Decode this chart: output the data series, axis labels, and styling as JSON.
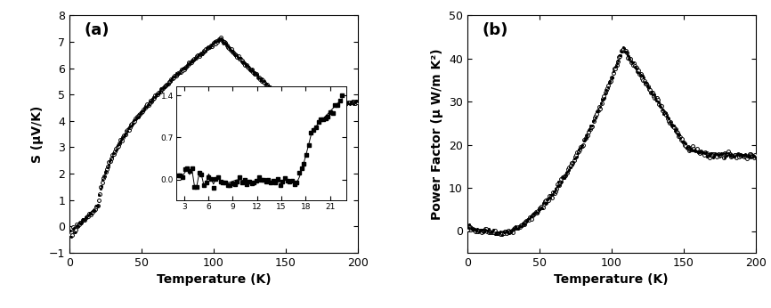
{
  "panel_a": {
    "label": "(a)",
    "xlabel": "Temperature (K)",
    "ylabel": "S (μV/K)",
    "xlim": [
      0,
      200
    ],
    "ylim": [
      -1,
      8
    ],
    "yticks": [
      -1,
      0,
      1,
      2,
      3,
      4,
      5,
      6,
      7,
      8
    ],
    "xticks": [
      0,
      50,
      100,
      150,
      200
    ]
  },
  "panel_b": {
    "label": "(b)",
    "xlabel": "Temperature (K)",
    "ylabel": "Power Factor (μ W/m K²)",
    "xlim": [
      0,
      200
    ],
    "ylim": [
      -5,
      50
    ],
    "yticks": [
      0,
      10,
      20,
      30,
      40,
      50
    ],
    "xticks": [
      0,
      50,
      100,
      150,
      200
    ]
  },
  "inset": {
    "xlim": [
      2,
      23
    ],
    "ylim": [
      -0.35,
      1.55
    ],
    "ytick_vals": [
      0.0,
      0.7,
      1.4
    ],
    "ytick_labels": [
      "0.0",
      "0.7",
      "1.4"
    ],
    "xticks": [
      3,
      6,
      9,
      12,
      15,
      18,
      21
    ]
  }
}
